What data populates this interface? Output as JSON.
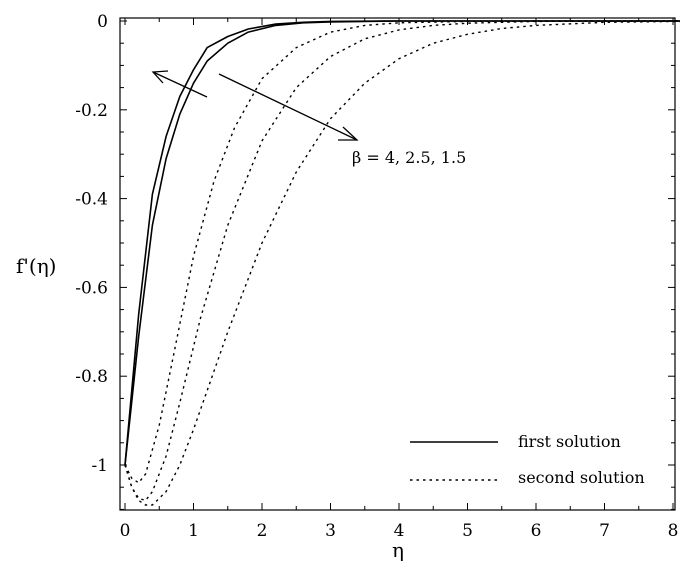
{
  "chart_data": {
    "type": "line",
    "xlabel": "η",
    "ylabel": "f'(η)",
    "xlim": [
      0,
      8.1
    ],
    "ylim": [
      -1.1,
      0.01
    ],
    "x_ticks": [
      "0",
      "1",
      "2",
      "3",
      "4",
      "5",
      "6",
      "7",
      "8"
    ],
    "y_ticks": [
      "0",
      "-0.2",
      "-0.4",
      "-0.6",
      "-0.8",
      "-1"
    ],
    "legend": {
      "placement": "bottom-right",
      "items": [
        {
          "label": "first solution",
          "style": "solid"
        },
        {
          "label": "second solution",
          "style": "dotted"
        }
      ]
    },
    "annotation": {
      "text": "β = 4, 2.5, 1.5"
    },
    "series": [
      {
        "group": "first solution",
        "style": "solid",
        "x": [
          0,
          0.2,
          0.4,
          0.6,
          0.8,
          1.0,
          1.2,
          1.5,
          1.8,
          2.2,
          2.6,
          3.0,
          4,
          5,
          6,
          7,
          8.1
        ],
        "y": [
          -1.0,
          -0.66,
          -0.39,
          -0.26,
          -0.17,
          -0.11,
          -0.06,
          -0.035,
          -0.018,
          -0.007,
          -0.003,
          -0.001,
          0,
          0,
          0,
          0,
          0
        ]
      },
      {
        "group": "first solution",
        "style": "solid",
        "x": [
          0,
          0.2,
          0.4,
          0.6,
          0.8,
          1.0,
          1.2,
          1.5,
          1.8,
          2.2,
          2.6,
          3.0,
          4,
          5,
          6,
          7,
          8.1
        ],
        "y": [
          -1.0,
          -0.71,
          -0.46,
          -0.31,
          -0.21,
          -0.14,
          -0.09,
          -0.05,
          -0.025,
          -0.01,
          -0.004,
          -0.002,
          0,
          0,
          0,
          0,
          0
        ]
      },
      {
        "group": "second solution",
        "style": "dotted",
        "x": [
          0,
          0.1,
          0.2,
          0.3,
          0.5,
          0.7,
          1.0,
          1.3,
          1.6,
          2.0,
          2.5,
          3.0,
          3.5,
          4.0,
          5,
          6,
          7,
          8.1
        ],
        "y": [
          -1.0,
          -1.03,
          -1.04,
          -1.02,
          -0.91,
          -0.76,
          -0.53,
          -0.36,
          -0.24,
          -0.13,
          -0.06,
          -0.025,
          -0.01,
          -0.004,
          -0.001,
          0,
          0,
          0
        ]
      },
      {
        "group": "second solution",
        "style": "dotted",
        "x": [
          0,
          0.1,
          0.2,
          0.3,
          0.4,
          0.6,
          0.8,
          1.1,
          1.5,
          2.0,
          2.5,
          3.0,
          3.5,
          4.0,
          4.5,
          5.0,
          6,
          7,
          8.1
        ],
        "y": [
          -1.0,
          -1.05,
          -1.075,
          -1.08,
          -1.06,
          -0.98,
          -0.86,
          -0.67,
          -0.46,
          -0.27,
          -0.15,
          -0.08,
          -0.04,
          -0.02,
          -0.01,
          -0.005,
          -0.001,
          0,
          0
        ]
      },
      {
        "group": "second solution",
        "style": "dotted",
        "x": [
          0,
          0.1,
          0.2,
          0.3,
          0.4,
          0.6,
          0.8,
          1.0,
          1.5,
          2.0,
          2.5,
          3.0,
          3.5,
          4.0,
          4.5,
          5.0,
          5.5,
          6.0,
          7.0,
          8.1
        ],
        "y": [
          -1.0,
          -1.05,
          -1.08,
          -1.09,
          -1.09,
          -1.06,
          -1.0,
          -0.92,
          -0.7,
          -0.5,
          -0.34,
          -0.22,
          -0.14,
          -0.085,
          -0.05,
          -0.03,
          -0.017,
          -0.01,
          -0.003,
          -0.001
        ]
      }
    ]
  }
}
